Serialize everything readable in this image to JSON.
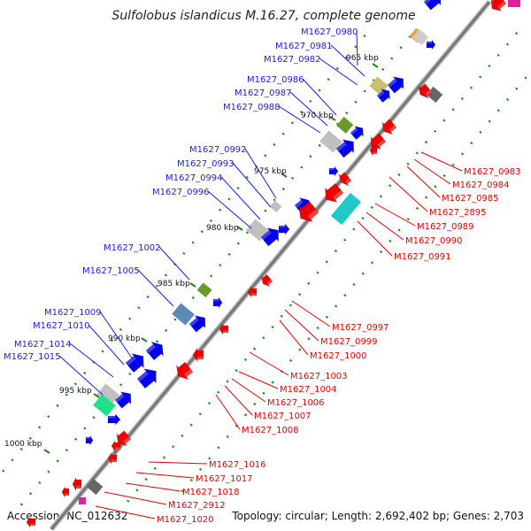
{
  "title": "Sulfolobus islandicus M.16.27, complete genome",
  "footer": {
    "accession": "Accession: NC_012632",
    "summary": "Topology: circular; Length: 2,692,402 bp; Genes: 2,703"
  },
  "kbp_labels": [
    "965 kbp",
    "970 kbp",
    "975 kbp",
    "980 kbp",
    "985 kbp",
    "990 kbp",
    "995 kbp",
    "1000 kbp"
  ],
  "colors": {
    "backbone": "#888888",
    "forward_gene": "#0000ee",
    "reverse_gene": "#ee0000",
    "forward_label": "#1a1aff",
    "reverse_label": "#e60000",
    "tick": "#1a8a1a"
  },
  "forward_genes": [
    "M1627_0980",
    "M1627_0981",
    "M1627_0982",
    "M1627_0986",
    "M1627_0987",
    "M1627_0988",
    "M1627_0992",
    "M1627_0993",
    "M1627_0994",
    "M1627_0996",
    "M1627_1002",
    "M1627_1005",
    "M1627_1009",
    "M1627_1010",
    "M1627_1014",
    "M1627_1015"
  ],
  "reverse_genes": [
    "M1627_0983",
    "M1627_0984",
    "M1627_0985",
    "M1627_2895",
    "M1627_0989",
    "M1627_0990",
    "M1627_0991",
    "M1627_0997",
    "M1627_0999",
    "M1627_1000",
    "M1627_1003",
    "M1627_1004",
    "M1627_1006",
    "M1627_1007",
    "M1627_1008",
    "M1627_1016",
    "M1627_1017",
    "M1627_1018",
    "M1627_2912",
    "M1627_1020"
  ]
}
